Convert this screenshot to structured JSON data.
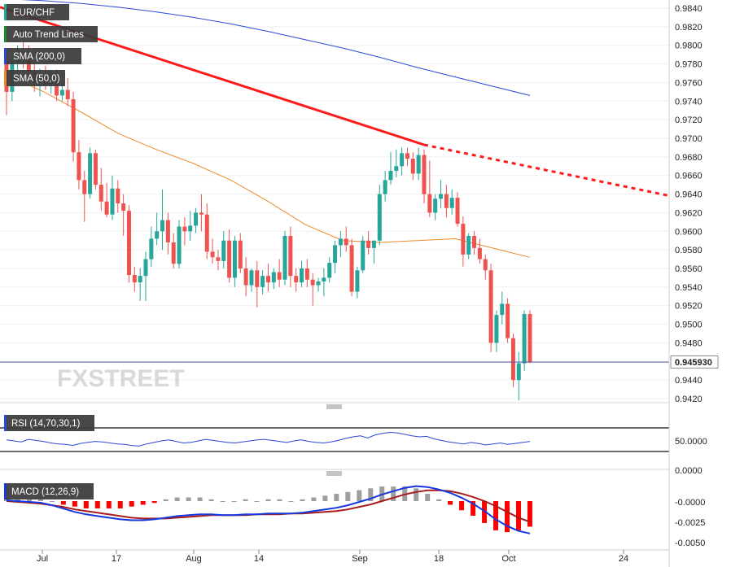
{
  "symbol": "EUR/CHF",
  "legend": [
    {
      "label": "EUR/CHF",
      "color": "#26a69a"
    },
    {
      "label": "Auto Trend Lines",
      "color": "#1a8a2a"
    },
    {
      "label": "SMA (200,0)",
      "color": "#2b48d8"
    },
    {
      "label": "SMA (50,0)",
      "color": "#ef8a28"
    }
  ],
  "last_price": "0.945930",
  "watermark": "FXSTREET",
  "colors": {
    "up": "#26a69a",
    "down": "#ef5350",
    "sma200": "#2b48d8",
    "sma50": "#ef8a28",
    "trend": "#ff1a1a",
    "macd": "#1437e0",
    "signal": "#a81c1c",
    "hist_pos": "#9e9e9e",
    "hist_neg": "#ff0000",
    "rsi": "#2b48d8"
  },
  "x_labels": [
    "Jul",
    "17",
    "Aug",
    "14",
    "Sep",
    "18",
    "Oct",
    "24"
  ],
  "rsi": {
    "title": "RSI (14,70,30,1)",
    "ticks": [
      "50.0000",
      "0.0000"
    ]
  },
  "macd": {
    "title": "MACD (12,26,9)",
    "ticks": [
      "-0.0000",
      "-0.0025",
      "-0.0050"
    ]
  },
  "chart_data": {
    "type": "candlestick",
    "title": "EUR/CHF",
    "y_ticks": [
      0.942,
      0.944,
      0.946,
      0.948,
      0.95,
      0.952,
      0.954,
      0.956,
      0.958,
      0.96,
      0.962,
      0.964,
      0.966,
      0.968,
      0.97,
      0.972,
      0.974,
      0.976,
      0.978,
      0.98,
      0.982,
      0.984
    ],
    "ylim": [
      0.9416,
      0.9846
    ],
    "candles": [
      [
        0.9784,
        0.9795,
        0.9725,
        0.975
      ],
      [
        0.975,
        0.979,
        0.974,
        0.9782
      ],
      [
        0.9782,
        0.98,
        0.977,
        0.979
      ],
      [
        0.979,
        0.9805,
        0.9775,
        0.9785
      ],
      [
        0.9785,
        0.98,
        0.9765,
        0.9772
      ],
      [
        0.9772,
        0.9785,
        0.975,
        0.976
      ],
      [
        0.976,
        0.9775,
        0.9745,
        0.9768
      ],
      [
        0.9768,
        0.9778,
        0.9752,
        0.9758
      ],
      [
        0.9758,
        0.9772,
        0.9748,
        0.9762
      ],
      [
        0.9762,
        0.9774,
        0.974,
        0.9746
      ],
      [
        0.9746,
        0.976,
        0.974,
        0.9752
      ],
      [
        0.9752,
        0.9765,
        0.9735,
        0.9742
      ],
      [
        0.9742,
        0.975,
        0.9675,
        0.9685
      ],
      [
        0.9685,
        0.9698,
        0.9645,
        0.9655
      ],
      [
        0.9655,
        0.9665,
        0.961,
        0.964
      ],
      [
        0.964,
        0.969,
        0.9635,
        0.9684
      ],
      [
        0.9684,
        0.9688,
        0.9645,
        0.965
      ],
      [
        0.965,
        0.9668,
        0.9622,
        0.9632
      ],
      [
        0.9632,
        0.9652,
        0.9615,
        0.9618
      ],
      [
        0.9618,
        0.966,
        0.9612,
        0.9646
      ],
      [
        0.9646,
        0.9655,
        0.962,
        0.963
      ],
      [
        0.963,
        0.964,
        0.9595,
        0.9622
      ],
      [
        0.9622,
        0.9628,
        0.9545,
        0.9553
      ],
      [
        0.9553,
        0.9562,
        0.9535,
        0.9545
      ],
      [
        0.9545,
        0.956,
        0.9525,
        0.9552
      ],
      [
        0.9552,
        0.9578,
        0.9525,
        0.957
      ],
      [
        0.957,
        0.9605,
        0.9562,
        0.9592
      ],
      [
        0.9592,
        0.962,
        0.9585,
        0.96
      ],
      [
        0.96,
        0.9645,
        0.958,
        0.9612
      ],
      [
        0.9612,
        0.962,
        0.9575,
        0.9588
      ],
      [
        0.9588,
        0.9598,
        0.956,
        0.9565
      ],
      [
        0.9565,
        0.9612,
        0.956,
        0.9605
      ],
      [
        0.9605,
        0.9615,
        0.9585,
        0.96
      ],
      [
        0.96,
        0.9622,
        0.959,
        0.9606
      ],
      [
        0.9606,
        0.9625,
        0.9598,
        0.962
      ],
      [
        0.962,
        0.964,
        0.96,
        0.9618
      ],
      [
        0.9618,
        0.963,
        0.957,
        0.9578
      ],
      [
        0.9578,
        0.9592,
        0.9565,
        0.9572
      ],
      [
        0.9572,
        0.958,
        0.9558,
        0.9568
      ],
      [
        0.9568,
        0.96,
        0.956,
        0.959
      ],
      [
        0.959,
        0.9602,
        0.9545,
        0.955
      ],
      [
        0.955,
        0.9595,
        0.954,
        0.959
      ],
      [
        0.959,
        0.9598,
        0.9555,
        0.956
      ],
      [
        0.956,
        0.9572,
        0.953,
        0.9542
      ],
      [
        0.9542,
        0.956,
        0.9535,
        0.9558
      ],
      [
        0.9558,
        0.9568,
        0.9518,
        0.954
      ],
      [
        0.954,
        0.9558,
        0.9532,
        0.9552
      ],
      [
        0.9552,
        0.9565,
        0.9535,
        0.9545
      ],
      [
        0.9545,
        0.956,
        0.9538,
        0.9556
      ],
      [
        0.9556,
        0.957,
        0.954,
        0.9548
      ],
      [
        0.9548,
        0.96,
        0.9542,
        0.9595
      ],
      [
        0.9595,
        0.9605,
        0.954,
        0.9552
      ],
      [
        0.9552,
        0.956,
        0.9535,
        0.9545
      ],
      [
        0.9545,
        0.9568,
        0.954,
        0.956
      ],
      [
        0.956,
        0.957,
        0.954,
        0.9548
      ],
      [
        0.9548,
        0.9555,
        0.952,
        0.9542
      ],
      [
        0.9542,
        0.955,
        0.9535,
        0.9546
      ],
      [
        0.9546,
        0.956,
        0.953,
        0.955
      ],
      [
        0.955,
        0.9572,
        0.9545,
        0.9566
      ],
      [
        0.9566,
        0.959,
        0.9555,
        0.9585
      ],
      [
        0.9585,
        0.96,
        0.9572,
        0.9592
      ],
      [
        0.9592,
        0.9605,
        0.9578,
        0.9585
      ],
      [
        0.9585,
        0.9592,
        0.953,
        0.9535
      ],
      [
        0.9535,
        0.9562,
        0.9528,
        0.9558
      ],
      [
        0.9558,
        0.9595,
        0.9555,
        0.959
      ],
      [
        0.959,
        0.96,
        0.9575,
        0.9582
      ],
      [
        0.9582,
        0.959,
        0.9565,
        0.959
      ],
      [
        0.959,
        0.965,
        0.9585,
        0.964
      ],
      [
        0.964,
        0.9665,
        0.9632,
        0.9655
      ],
      [
        0.9655,
        0.9685,
        0.965,
        0.9665
      ],
      [
        0.9665,
        0.9688,
        0.9658,
        0.967
      ],
      [
        0.967,
        0.969,
        0.966,
        0.9684
      ],
      [
        0.9684,
        0.969,
        0.967,
        0.9678
      ],
      [
        0.9678,
        0.9685,
        0.9655,
        0.9662
      ],
      [
        0.9662,
        0.969,
        0.9655,
        0.9682
      ],
      [
        0.9682,
        0.9688,
        0.963,
        0.964
      ],
      [
        0.964,
        0.9676,
        0.9615,
        0.962
      ],
      [
        0.962,
        0.964,
        0.9612,
        0.9635
      ],
      [
        0.9635,
        0.9655,
        0.9625,
        0.964
      ],
      [
        0.964,
        0.965,
        0.9615,
        0.9625
      ],
      [
        0.9625,
        0.9645,
        0.9618,
        0.9636
      ],
      [
        0.9636,
        0.9642,
        0.9605,
        0.9608
      ],
      [
        0.9608,
        0.9616,
        0.9562,
        0.9575
      ],
      [
        0.9575,
        0.9598,
        0.957,
        0.9595
      ],
      [
        0.9595,
        0.96,
        0.9575,
        0.9582
      ],
      [
        0.9582,
        0.9592,
        0.9565,
        0.957
      ],
      [
        0.957,
        0.9575,
        0.9548,
        0.9558
      ],
      [
        0.9558,
        0.9565,
        0.947,
        0.948
      ],
      [
        0.948,
        0.9515,
        0.947,
        0.951
      ],
      [
        0.951,
        0.9535,
        0.95,
        0.9522
      ],
      [
        0.9522,
        0.9528,
        0.948,
        0.9485
      ],
      [
        0.9485,
        0.949,
        0.9432,
        0.944
      ],
      [
        0.944,
        0.947,
        0.9418,
        0.9458
      ],
      [
        0.9458,
        0.9515,
        0.945,
        0.9511
      ],
      [
        0.9511,
        0.9515,
        0.9458,
        0.9459
      ]
    ],
    "sma200": [
      0.985,
      0.9848,
      0.9845,
      0.9841,
      0.9836,
      0.983,
      0.9823,
      0.9815,
      0.9806,
      0.9797,
      0.9787,
      0.9776,
      0.9766,
      0.9756,
      0.9746
    ],
    "sma50": [
      0.9768,
      0.975,
      0.9728,
      0.9705,
      0.9688,
      0.9673,
      0.9655,
      0.9632,
      0.9607,
      0.959,
      0.9588,
      0.959,
      0.9592,
      0.9582,
      0.9572
    ],
    "trend": {
      "from": [
        0,
        0.9841
      ],
      "to": [
        75,
        0.9693
      ],
      "projected_to": [
        106,
        0.964
      ]
    },
    "rsi": [
      52,
      50,
      48,
      53,
      51,
      49,
      46,
      44,
      43,
      41,
      45,
      47,
      49,
      48,
      46,
      44,
      43,
      41,
      40,
      44,
      47,
      50,
      52,
      49,
      46,
      47,
      50,
      53,
      51,
      49,
      47,
      46,
      48,
      50,
      52,
      53,
      51,
      49,
      47,
      50,
      52,
      49,
      47,
      46,
      48,
      51,
      55,
      58,
      60,
      56,
      62,
      65,
      67,
      66,
      63,
      60,
      58,
      59,
      54,
      51,
      48,
      46,
      44,
      47,
      45,
      42,
      44,
      46,
      43,
      45,
      47,
      49
    ],
    "macd": [
      0.0001,
      0.0,
      -0.0001,
      -0.0002,
      -0.0005,
      -0.0009,
      -0.0013,
      -0.0016,
      -0.0018,
      -0.002,
      -0.0022,
      -0.0023,
      -0.0023,
      -0.0022,
      -0.002,
      -0.0018,
      -0.0017,
      -0.0016,
      -0.0016,
      -0.0017,
      -0.0017,
      -0.0016,
      -0.0016,
      -0.0015,
      -0.0015,
      -0.0015,
      -0.0014,
      -0.0012,
      -0.001,
      -0.0008,
      -0.0005,
      -0.0001,
      0.0003,
      0.0008,
      0.0012,
      0.0016,
      0.0018,
      0.0017,
      0.0014,
      0.001,
      0.0004,
      -0.0003,
      -0.0012,
      -0.0022,
      -0.003,
      -0.0036,
      -0.0039
    ],
    "signal": [
      0.0,
      -0.0001,
      -0.0002,
      -0.0003,
      -0.0005,
      -0.0007,
      -0.001,
      -0.0012,
      -0.0014,
      -0.0016,
      -0.0018,
      -0.002,
      -0.0021,
      -0.0021,
      -0.0021,
      -0.002,
      -0.0019,
      -0.0018,
      -0.0017,
      -0.0017,
      -0.0017,
      -0.0017,
      -0.0016,
      -0.0016,
      -0.0016,
      -0.0015,
      -0.0015,
      -0.0014,
      -0.0013,
      -0.0012,
      -0.001,
      -0.0007,
      -0.0004,
      0.0,
      0.0004,
      0.0008,
      0.0011,
      0.0013,
      0.0013,
      0.0012,
      0.0009,
      0.0005,
      0.0,
      -0.0006,
      -0.0013,
      -0.002,
      -0.0025
    ]
  }
}
